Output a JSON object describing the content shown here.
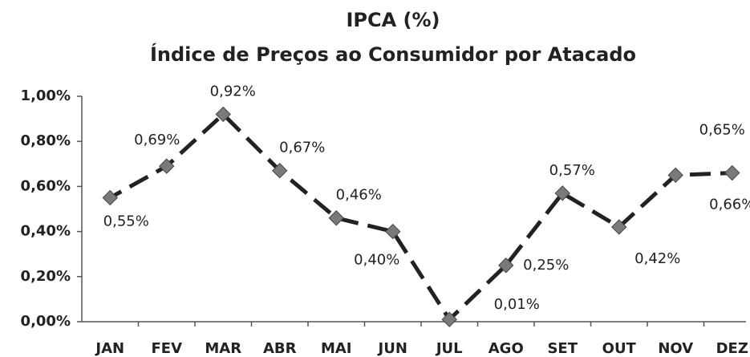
{
  "chart_data": {
    "type": "line",
    "title": "IPCA (%)",
    "subtitle": "Índice de Preços ao Consumidor por Atacado",
    "categories": [
      "JAN",
      "FEV",
      "MAR",
      "ABR",
      "MAI",
      "JUN",
      "JUL",
      "AGO",
      "SET",
      "OUT",
      "NOV",
      "DEZ"
    ],
    "series": [
      {
        "name": "IPCA",
        "color": "#222222",
        "marker_color": "#7a7a7a",
        "values": [
          0.55,
          0.69,
          0.92,
          0.67,
          0.46,
          0.4,
          0.01,
          0.25,
          0.57,
          0.42,
          0.65,
          0.66
        ],
        "value_labels": [
          "0,55%",
          "0,69%",
          "0,92%",
          "0,67%",
          "0,46%",
          "0,40%",
          "0,01%",
          "0,25%",
          "0,57%",
          "0,42%",
          "0,65%",
          "0,66%"
        ]
      }
    ],
    "ylim": [
      0,
      1
    ],
    "yticks": [
      {
        "value": 0,
        "label": "0,00%"
      },
      {
        "value": 0.2,
        "label": "0,20%"
      },
      {
        "value": 0.4,
        "label": "0,40%"
      },
      {
        "value": 0.6,
        "label": "0,60%"
      },
      {
        "value": 0.8,
        "label": "0,80%"
      },
      {
        "value": 1,
        "label": "1,00%"
      }
    ],
    "grid": false
  }
}
